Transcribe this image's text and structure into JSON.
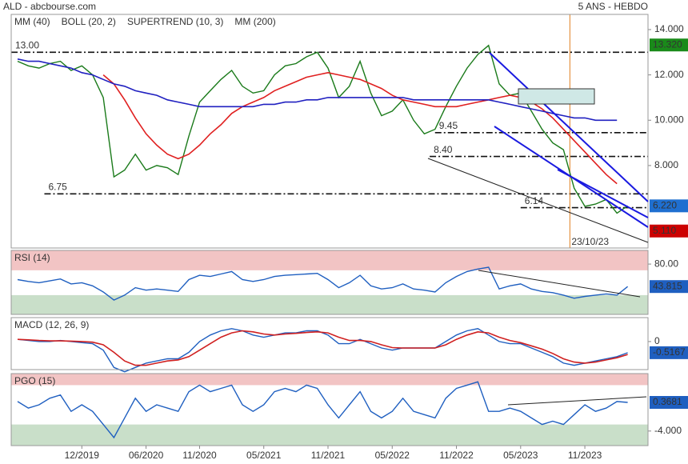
{
  "header": {
    "title": "ALD - abcbourse.com",
    "period": "5 ANS - HEBDO"
  },
  "chart_data": [
    {
      "type": "line",
      "xlim": [
        -6.6,
        52.9
      ],
      "ylim": [
        4.36,
        14.67
      ],
      "yticks": [
        {
          "value": 14,
          "label": "14.000"
        },
        {
          "value": 12,
          "label": "12.000"
        },
        {
          "value": 10,
          "label": "10.000"
        },
        {
          "value": 8,
          "label": "8.000"
        }
      ],
      "x": [
        -6,
        -5,
        -4,
        -3,
        -2,
        -1,
        0,
        1,
        2,
        3,
        4,
        5,
        6,
        7,
        8,
        9,
        10,
        11,
        12,
        13,
        14,
        15,
        16,
        17,
        18,
        19,
        20,
        21,
        22,
        23,
        24,
        25,
        26,
        27,
        28,
        29,
        30,
        31,
        32,
        33,
        34,
        35,
        36,
        37,
        38,
        39,
        40,
        41,
        42,
        43,
        44,
        45,
        46,
        47,
        48,
        49,
        50,
        51
      ],
      "series": [
        {
          "color": "#1a7a1a",
          "values": [
            12.6,
            12.4,
            12.3,
            12.5,
            12.6,
            12.2,
            12.4,
            12.0,
            11.0,
            7.5,
            7.8,
            8.5,
            7.8,
            8.0,
            7.9,
            7.6,
            9.3,
            10.8,
            11.3,
            11.8,
            12.2,
            11.5,
            11.2,
            11.3,
            12.0,
            12.4,
            12.5,
            12.8,
            13.0,
            12.3,
            11.0,
            11.5,
            12.6,
            11.2,
            10.2,
            10.4,
            10.9,
            10.0,
            9.4,
            9.6,
            10.6,
            11.5,
            12.3,
            12.9,
            13.3,
            11.6,
            11.1,
            11.2,
            10.4,
            9.6,
            9.0,
            8.7,
            7.0,
            6.2,
            6.3,
            6.5,
            5.9,
            6.22
          ]
        },
        {
          "name": "MM (40)",
          "color": "#e02020",
          "values": [
            null,
            null,
            null,
            null,
            null,
            null,
            null,
            null,
            12.0,
            11.6,
            10.9,
            10.1,
            9.4,
            8.9,
            8.5,
            8.3,
            8.5,
            8.9,
            9.4,
            9.8,
            10.3,
            10.6,
            10.8,
            11.0,
            11.3,
            11.5,
            11.7,
            11.9,
            12.0,
            12.1,
            12.0,
            11.9,
            11.8,
            11.6,
            11.4,
            11.1,
            10.9,
            10.8,
            10.7,
            10.6,
            10.6,
            10.6,
            10.7,
            10.8,
            10.9,
            11.0,
            11.1,
            11.0,
            10.8,
            10.5,
            10.1,
            9.6,
            9.1,
            8.6,
            8.1,
            7.6,
            7.2,
            null
          ]
        },
        {
          "name": "MM (200)",
          "color": "#2020c0",
          "values": [
            12.7,
            12.6,
            12.6,
            12.5,
            12.4,
            12.3,
            12.1,
            12.0,
            11.8,
            11.6,
            11.5,
            11.3,
            11.2,
            11.1,
            10.9,
            10.8,
            10.7,
            10.6,
            10.6,
            10.6,
            10.6,
            10.6,
            10.6,
            10.7,
            10.7,
            10.8,
            10.8,
            10.9,
            10.9,
            11.0,
            11.0,
            11.0,
            11.0,
            11.0,
            11.0,
            11.0,
            11.0,
            10.9,
            10.9,
            10.9,
            10.9,
            10.9,
            10.9,
            10.9,
            10.9,
            10.8,
            10.7,
            10.6,
            10.5,
            10.4,
            10.3,
            10.2,
            10.1,
            10.1,
            10.0,
            10.0,
            10.0,
            null
          ]
        }
      ],
      "overlays": [
        {
          "name": "BOLL (20, 2)",
          "color": "#e8a040"
        },
        {
          "name": "SUPERTREND (10, 3)",
          "color": "#b00000"
        }
      ],
      "levels": [
        {
          "value": 13.0,
          "label": "13.00",
          "from": -6.6
        },
        {
          "value": 9.45,
          "label": "9.45",
          "from": 33
        },
        {
          "value": 8.4,
          "label": "8.40",
          "from": 32.5
        },
        {
          "value": 6.75,
          "label": "6.75",
          "from": -3.5
        },
        {
          "value": 6.14,
          "label": "6.14",
          "from": 41
        }
      ],
      "events": [
        {
          "x": 45.6,
          "label": "23/10/23"
        }
      ],
      "last_labels": [
        {
          "value": 13.32,
          "label": "13.320",
          "color": "#1a8a1a"
        },
        {
          "value": 6.22,
          "label": "6.220",
          "color": "#1f6fd0"
        },
        {
          "value": 5.11,
          "label": "5.110",
          "color": "#cc0000"
        }
      ]
    },
    {
      "type": "line",
      "title": "RSI (14)",
      "xlim": [
        -6.6,
        52.9
      ],
      "ylim": [
        -1,
        102
      ],
      "yticks": [
        {
          "value": 80,
          "label": "80.00"
        }
      ],
      "bands": [
        {
          "from": 70,
          "to": 102,
          "color": "#f2c4c4"
        },
        {
          "from": -1,
          "to": 30,
          "color": "#c9dfc9"
        }
      ],
      "x": [
        -6,
        -5,
        -4,
        -3,
        -2,
        -1,
        0,
        1,
        2,
        3,
        4,
        5,
        6,
        7,
        8,
        9,
        10,
        11,
        12,
        13,
        14,
        15,
        16,
        17,
        18,
        19,
        20,
        21,
        22,
        23,
        24,
        25,
        26,
        27,
        28,
        29,
        30,
        31,
        32,
        33,
        34,
        35,
        36,
        37,
        38,
        39,
        40,
        41,
        42,
        43,
        44,
        45,
        46,
        47,
        48,
        49,
        50,
        51
      ],
      "series": [
        {
          "color": "#1f5fc0",
          "values": [
            55,
            52,
            50,
            53,
            56,
            48,
            50,
            45,
            35,
            22,
            30,
            42,
            38,
            40,
            38,
            36,
            55,
            62,
            60,
            64,
            68,
            55,
            52,
            55,
            60,
            62,
            63,
            64,
            65,
            55,
            42,
            50,
            62,
            45,
            40,
            42,
            48,
            40,
            38,
            35,
            50,
            60,
            68,
            72,
            75,
            40,
            45,
            48,
            40,
            36,
            34,
            30,
            25,
            28,
            30,
            32,
            30,
            43.815
          ]
        }
      ],
      "last_labels": [
        {
          "value": 43.815,
          "label": "43.815",
          "color": "#1f5fc0"
        }
      ]
    },
    {
      "type": "line",
      "title": "MACD (12, 26, 9)",
      "xlim": [
        -6.6,
        52.9
      ],
      "ylim": [
        -1.3,
        1.11
      ],
      "yticks": [
        0
      ],
      "x": [
        -6,
        -5,
        -4,
        -3,
        -2,
        -1,
        0,
        1,
        2,
        3,
        4,
        5,
        6,
        7,
        8,
        9,
        10,
        11,
        12,
        13,
        14,
        15,
        16,
        17,
        18,
        19,
        20,
        21,
        22,
        23,
        24,
        25,
        26,
        27,
        28,
        29,
        30,
        31,
        32,
        33,
        34,
        35,
        36,
        37,
        38,
        39,
        40,
        41,
        42,
        43,
        44,
        45,
        46,
        47,
        48,
        49,
        50,
        51
      ],
      "series": [
        {
          "color": "#1f5fc0",
          "values": [
            0.1,
            0.05,
            0,
            0,
            0.05,
            0,
            -0.05,
            -0.1,
            -0.4,
            -1.2,
            -1.4,
            -1.2,
            -1.0,
            -0.9,
            -0.8,
            -0.8,
            -0.5,
            0,
            0.3,
            0.5,
            0.6,
            0.5,
            0.3,
            0.2,
            0.3,
            0.4,
            0.4,
            0.5,
            0.5,
            0.3,
            -0.1,
            -0.1,
            0.1,
            -0.1,
            -0.3,
            -0.4,
            -0.3,
            -0.3,
            -0.3,
            -0.3,
            0,
            0.3,
            0.5,
            0.6,
            0.3,
            0,
            -0.1,
            -0.1,
            -0.3,
            -0.5,
            -0.7,
            -1.0,
            -1.1,
            -1.0,
            -0.9,
            -0.8,
            -0.7,
            -0.5167
          ]
        },
        {
          "color": "#d02020",
          "values": [
            0.1,
            0.08,
            0.05,
            0.03,
            0.03,
            0.02,
            0,
            -0.03,
            -0.15,
            -0.5,
            -0.9,
            -1.1,
            -1.1,
            -1.0,
            -0.9,
            -0.85,
            -0.7,
            -0.4,
            -0.1,
            0.2,
            0.4,
            0.5,
            0.45,
            0.35,
            0.3,
            0.35,
            0.38,
            0.42,
            0.45,
            0.4,
            0.2,
            0.05,
            0.05,
            0,
            -0.15,
            -0.28,
            -0.3,
            -0.3,
            -0.3,
            -0.3,
            -0.15,
            0.1,
            0.3,
            0.45,
            0.4,
            0.2,
            0.05,
            -0.05,
            -0.2,
            -0.35,
            -0.55,
            -0.8,
            -0.95,
            -1.0,
            -0.95,
            -0.85,
            -0.75,
            -0.6
          ]
        }
      ],
      "last_labels": [
        {
          "value": -0.5167,
          "label": "-0.5167",
          "color": "#1f5fc0"
        }
      ]
    },
    {
      "type": "line",
      "title": "PGO (15)",
      "xlim": [
        -6.6,
        52.9
      ],
      "ylim": [
        -6.22,
        4.76
      ],
      "yticks": [
        {
          "value": -4,
          "label": "-4.000"
        }
      ],
      "bands": [
        {
          "from": 3,
          "to": 4.76,
          "color": "#f2c4c4"
        },
        {
          "from": -6.22,
          "to": -3,
          "color": "#c9dfc9"
        }
      ],
      "x": [
        -6,
        -5,
        -4,
        -3,
        -2,
        -1,
        0,
        1,
        2,
        3,
        4,
        5,
        6,
        7,
        8,
        9,
        10,
        11,
        12,
        13,
        14,
        15,
        16,
        17,
        18,
        19,
        20,
        21,
        22,
        23,
        24,
        25,
        26,
        27,
        28,
        29,
        30,
        31,
        32,
        33,
        34,
        35,
        36,
        37,
        38,
        39,
        40,
        41,
        42,
        43,
        44,
        45,
        46,
        47,
        48,
        49,
        50,
        51
      ],
      "series": [
        {
          "color": "#1f5fc0",
          "values": [
            0.5,
            -0.5,
            0,
            1,
            1.5,
            -1,
            0,
            -1,
            -3,
            -5,
            -2,
            1,
            -1,
            0,
            -0.5,
            -1,
            2,
            3,
            2,
            2.5,
            3,
            0,
            -1,
            0,
            2,
            2.5,
            2,
            3,
            2.5,
            0,
            -2,
            0,
            2,
            -1,
            -2,
            -1,
            1,
            -1,
            -1.5,
            -2,
            1,
            2.5,
            3,
            3.5,
            -1,
            -1,
            -0.5,
            -1,
            -2,
            -3,
            -2.5,
            -3,
            -1.5,
            0,
            -1,
            -0.5,
            0.5,
            0.3681
          ]
        }
      ],
      "last_labels": [
        {
          "value": 0.3681,
          "label": "0.3681",
          "color": "#1f5fc0"
        }
      ],
      "xticks": [
        {
          "value": 0,
          "label": "12/2019"
        },
        {
          "value": 6,
          "label": "06/2020"
        },
        {
          "value": 11,
          "label": "11/2020"
        },
        {
          "value": 17,
          "label": "05/2021"
        },
        {
          "value": 23,
          "label": "11/2021"
        },
        {
          "value": 29,
          "label": "05/2022"
        },
        {
          "value": 35,
          "label": "11/2022"
        },
        {
          "value": 41,
          "label": "05/2023"
        },
        {
          "value": 47,
          "label": "11/2023"
        }
      ]
    }
  ]
}
